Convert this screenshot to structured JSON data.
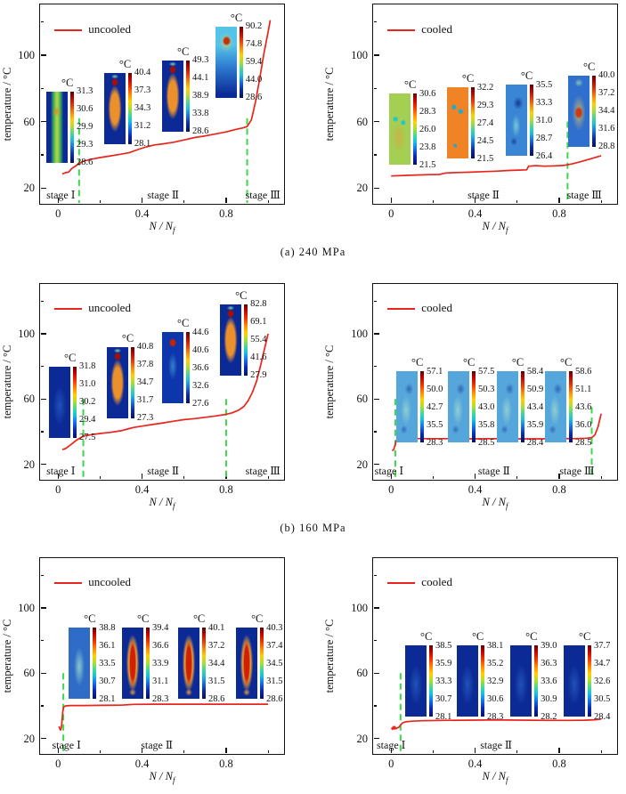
{
  "figure": {
    "captions": [
      "(a) 240 MPa",
      "(b) 160 MPa"
    ],
    "colors": {
      "curve": "#e8251c",
      "stage_line": "#3cd84a",
      "axis": "#111111"
    },
    "axes": {
      "y_title": "temperature / °C",
      "x_title": {
        "var": "N",
        "sep": " / ",
        "sub": "f"
      },
      "xlim": [
        -0.09,
        1.08
      ],
      "ylim": [
        10,
        131
      ],
      "x_major": [
        {
          "v": 0,
          "label": "0"
        },
        {
          "v": 0.4,
          "label": "0.4"
        },
        {
          "v": 0.8,
          "label": "0.8"
        }
      ],
      "x_minor": [
        0.2,
        0.6,
        1.0
      ],
      "y_major": [
        {
          "v": 20,
          "label": "20"
        },
        {
          "v": 60,
          "label": "60"
        },
        {
          "v": 100,
          "label": "100"
        }
      ],
      "y_minor": [
        40,
        80,
        120
      ],
      "grid": false,
      "legend_position": "top-left-inside"
    }
  },
  "chart_data": [
    {
      "type": "line",
      "name": "240 MPa uncooled",
      "row": 0,
      "col": 0,
      "legend": "uncooled",
      "curve": [
        [
          0.02,
          28.5
        ],
        [
          0.035,
          29.3
        ],
        [
          0.05,
          29.6
        ],
        [
          0.065,
          31.8
        ],
        [
          0.08,
          33
        ],
        [
          0.1,
          34.8
        ],
        [
          0.12,
          36.2
        ],
        [
          0.16,
          37.4
        ],
        [
          0.2,
          38.4
        ],
        [
          0.25,
          39.4
        ],
        [
          0.3,
          40.4
        ],
        [
          0.34,
          41.4
        ],
        [
          0.38,
          43.2
        ],
        [
          0.42,
          44.8
        ],
        [
          0.46,
          46
        ],
        [
          0.5,
          46.6
        ],
        [
          0.55,
          47.6
        ],
        [
          0.6,
          49
        ],
        [
          0.65,
          50.4
        ],
        [
          0.7,
          51.4
        ],
        [
          0.75,
          52.6
        ],
        [
          0.8,
          53.8
        ],
        [
          0.85,
          55.4
        ],
        [
          0.88,
          56.2
        ],
        [
          0.9,
          57
        ],
        [
          0.92,
          61
        ],
        [
          0.94,
          72
        ],
        [
          0.96,
          86
        ],
        [
          0.98,
          101
        ],
        [
          1.0,
          114
        ],
        [
          1.01,
          121
        ]
      ],
      "stage_lines": [
        {
          "x": 0.1,
          "y_top": 62
        },
        {
          "x": 0.9,
          "y_top": 62
        }
      ],
      "stage_labels": [
        {
          "text": "stage Ⅰ",
          "x": 0.013
        },
        {
          "text": "stage Ⅱ",
          "x": 0.5
        },
        {
          "text": "stage Ⅲ",
          "x": 0.975
        }
      ],
      "insets": [
        {
          "unit": "°C",
          "ticks": [
            "31.3",
            "30.6",
            "29.9",
            "29.3",
            "28.6"
          ],
          "appearance": "t-bluegreen",
          "pos": {
            "x": 0.029,
            "y": 0.438
          }
        },
        {
          "unit": "°C",
          "ticks": [
            "40.4",
            "37.3",
            "34.3",
            "31.2",
            "28.1"
          ],
          "appearance": "t-hotstripe",
          "pos": {
            "x": 0.264,
            "y": 0.345
          }
        },
        {
          "unit": "°C",
          "ticks": [
            "49.3",
            "44.1",
            "38.9",
            "33.8",
            "28.6"
          ],
          "appearance": "t-hotstripe",
          "pos": {
            "x": 0.5,
            "y": 0.283
          }
        },
        {
          "unit": "°C",
          "ticks": [
            "90.2",
            "74.8",
            "59.4",
            "44.0",
            "28.6"
          ],
          "appearance": "t-cyanhot",
          "pos": {
            "x": 0.717,
            "y": 0.115
          }
        }
      ]
    },
    {
      "type": "line",
      "name": "240 MPa cooled",
      "row": 0,
      "col": 1,
      "legend": "cooled",
      "curve": [
        [
          0.0,
          27.3
        ],
        [
          0.06,
          27.6
        ],
        [
          0.12,
          27.9
        ],
        [
          0.18,
          28.1
        ],
        [
          0.23,
          28.2
        ],
        [
          0.26,
          29.1
        ],
        [
          0.32,
          29.4
        ],
        [
          0.38,
          29.6
        ],
        [
          0.44,
          29.9
        ],
        [
          0.5,
          30.2
        ],
        [
          0.56,
          30.6
        ],
        [
          0.62,
          30.9
        ],
        [
          0.645,
          31
        ],
        [
          0.655,
          33.2
        ],
        [
          0.69,
          33.5
        ],
        [
          0.73,
          33.2
        ],
        [
          0.78,
          33.4
        ],
        [
          0.82,
          33.6
        ],
        [
          0.86,
          34.5
        ],
        [
          0.9,
          35.8
        ],
        [
          0.95,
          37.6
        ],
        [
          1.0,
          39.5
        ]
      ],
      "stage_lines": [
        {
          "x": 0.84,
          "y_top": 60
        }
      ],
      "stage_labels": [
        {
          "text": "stage Ⅱ",
          "x": 0.44
        },
        {
          "text": "stage Ⅲ",
          "x": 0.92
        }
      ],
      "insets": [
        {
          "unit": "°C",
          "ticks": [
            "30.6",
            "28.3",
            "26.0",
            "23.8",
            "21.5"
          ],
          "appearance": "t-greenflat",
          "pos": {
            "x": 0.069,
            "y": 0.447
          }
        },
        {
          "unit": "°C",
          "ticks": [
            "32.2",
            "29.3",
            "27.4",
            "24.5",
            "21.5"
          ],
          "appearance": "t-orangeflat",
          "pos": {
            "x": 0.304,
            "y": 0.416
          }
        },
        {
          "unit": "°C",
          "ticks": [
            "35.5",
            "33.3",
            "31.0",
            "28.7",
            "26.4"
          ],
          "appearance": "t-bluemottled",
          "pos": {
            "x": 0.543,
            "y": 0.403
          }
        },
        {
          "unit": "°C",
          "ticks": [
            "40.0",
            "37.2",
            "34.4",
            "31.6",
            "28.8"
          ],
          "appearance": "t-bluehotmid",
          "pos": {
            "x": 0.797,
            "y": 0.358
          }
        }
      ]
    },
    {
      "type": "line",
      "name": "160 MPa uncooled",
      "row": 1,
      "col": 0,
      "legend": "uncooled",
      "curve": [
        [
          0.02,
          29
        ],
        [
          0.035,
          29.6
        ],
        [
          0.05,
          31
        ],
        [
          0.07,
          33
        ],
        [
          0.09,
          35
        ],
        [
          0.11,
          36.6
        ],
        [
          0.13,
          37.6
        ],
        [
          0.16,
          38.2
        ],
        [
          0.2,
          38.9
        ],
        [
          0.25,
          39.6
        ],
        [
          0.3,
          40.6
        ],
        [
          0.33,
          41.6
        ],
        [
          0.36,
          42.6
        ],
        [
          0.4,
          43.4
        ],
        [
          0.45,
          44.4
        ],
        [
          0.5,
          45.4
        ],
        [
          0.55,
          46.4
        ],
        [
          0.6,
          47.4
        ],
        [
          0.65,
          48
        ],
        [
          0.7,
          48.8
        ],
        [
          0.75,
          49.6
        ],
        [
          0.8,
          50.6
        ],
        [
          0.83,
          51.6
        ],
        [
          0.86,
          53.2
        ],
        [
          0.885,
          55.5
        ],
        [
          0.905,
          59
        ],
        [
          0.925,
          64
        ],
        [
          0.945,
          71
        ],
        [
          0.965,
          81
        ],
        [
          0.985,
          92
        ],
        [
          1.0,
          100
        ]
      ],
      "stage_lines": [
        {
          "x": 0.12,
          "y_top": 60
        },
        {
          "x": 0.8,
          "y_top": 60
        }
      ],
      "stage_labels": [
        {
          "text": "stage Ⅰ",
          "x": 0.013
        },
        {
          "text": "stage Ⅱ",
          "x": 0.5
        },
        {
          "text": "stage Ⅲ",
          "x": 0.975
        }
      ],
      "insets": [
        {
          "unit": "°C",
          "ticks": [
            "31.8",
            "31.0",
            "30.2",
            "29.4",
            "27.5"
          ],
          "appearance": "t-bluedark",
          "pos": {
            "x": 0.04,
            "y": 0.423
          }
        },
        {
          "unit": "°C",
          "ticks": [
            "40.8",
            "37.8",
            "34.7",
            "31.7",
            "27.3"
          ],
          "appearance": "t-hotstripe",
          "pos": {
            "x": 0.275,
            "y": 0.324
          }
        },
        {
          "unit": "°C",
          "ticks": [
            "44.6",
            "40.6",
            "36.6",
            "32.6",
            "27.6"
          ],
          "appearance": "t-spottop",
          "pos": {
            "x": 0.5,
            "y": 0.248
          }
        },
        {
          "unit": "°C",
          "ticks": [
            "82.8",
            "69.1",
            "55.4",
            "41.6",
            "27.9"
          ],
          "appearance": "t-hotstripe",
          "pos": {
            "x": 0.736,
            "y": 0.108
          }
        }
      ]
    },
    {
      "type": "line",
      "name": "160 MPa cooled",
      "row": 1,
      "col": 1,
      "legend": "cooled",
      "curve": [
        [
          0.005,
          28.3
        ],
        [
          0.012,
          29
        ],
        [
          0.018,
          31.5
        ],
        [
          0.025,
          34.5
        ],
        [
          0.035,
          35.6
        ],
        [
          0.05,
          35.8
        ],
        [
          0.1,
          35.8
        ],
        [
          0.2,
          35.7
        ],
        [
          0.3,
          35.7
        ],
        [
          0.4,
          35.6
        ],
        [
          0.5,
          35.7
        ],
        [
          0.6,
          35.6
        ],
        [
          0.7,
          35.6
        ],
        [
          0.8,
          35.7
        ],
        [
          0.88,
          35.8
        ],
        [
          0.93,
          36
        ],
        [
          0.955,
          36.4
        ],
        [
          0.97,
          38
        ],
        [
          0.985,
          43
        ],
        [
          1.0,
          51
        ]
      ],
      "stage_lines": [
        {
          "x": 0.02,
          "y_top": 60
        },
        {
          "x": 0.955,
          "y_top": 55
        }
      ],
      "stage_labels": [
        {
          "text": "stage Ⅰ",
          "x": -0.01
        },
        {
          "text": "stage Ⅱ",
          "x": 0.49
        },
        {
          "text": "stage Ⅲ",
          "x": 0.885
        }
      ],
      "insets": [
        {
          "unit": "°C",
          "ticks": [
            "57.1",
            "50.0",
            "42.7",
            "35.5",
            "28.3"
          ],
          "appearance": "t-cyanmottled",
          "pos": {
            "x": 0.098,
            "y": 0.446
          }
        },
        {
          "unit": "°C",
          "ticks": [
            "57.5",
            "50.3",
            "43.0",
            "35.8",
            "28.5"
          ],
          "appearance": "t-cyanmottled",
          "pos": {
            "x": 0.308,
            "y": 0.446
          }
        },
        {
          "unit": "°C",
          "ticks": [
            "58.4",
            "50.9",
            "43.4",
            "35.9",
            "28.4"
          ],
          "appearance": "t-cyanmottled",
          "pos": {
            "x": 0.507,
            "y": 0.446
          }
        },
        {
          "unit": "°C",
          "ticks": [
            "58.6",
            "51.1",
            "43.6",
            "36.0",
            "28.5"
          ],
          "appearance": "t-cyanmottled",
          "pos": {
            "x": 0.703,
            "y": 0.446
          }
        }
      ]
    },
    {
      "type": "line",
      "name": "uncooled (bottom row)",
      "row": 2,
      "col": 0,
      "legend": "uncooled",
      "curve": [
        [
          0.004,
          27.5
        ],
        [
          0.008,
          26
        ],
        [
          0.012,
          25.2
        ],
        [
          0.016,
          27
        ],
        [
          0.019,
          31
        ],
        [
          0.022,
          36
        ],
        [
          0.026,
          39.2
        ],
        [
          0.035,
          40
        ],
        [
          0.06,
          40.2
        ],
        [
          0.12,
          40.2
        ],
        [
          0.2,
          40.3
        ],
        [
          0.3,
          40.4
        ],
        [
          0.36,
          40.9
        ],
        [
          0.45,
          41
        ],
        [
          0.55,
          41
        ],
        [
          0.65,
          41
        ],
        [
          0.75,
          41
        ],
        [
          0.85,
          41
        ],
        [
          0.95,
          41
        ],
        [
          1.0,
          41
        ]
      ],
      "stage_lines": [
        {
          "x": 0.025,
          "y_top": 60
        }
      ],
      "stage_labels": [
        {
          "text": "stage Ⅰ",
          "x": 0.04
        },
        {
          "text": "stage Ⅱ",
          "x": 0.47
        }
      ],
      "insets": [
        {
          "unit": "°C",
          "ticks": [
            "38.8",
            "36.1",
            "33.5",
            "30.7",
            "28.1"
          ],
          "appearance": "t-palestripe",
          "pos": {
            "x": 0.12,
            "y": 0.356
          }
        },
        {
          "unit": "°C",
          "ticks": [
            "39.4",
            "36.6",
            "33.9",
            "31.1",
            "28.3"
          ],
          "appearance": "t-redbar",
          "pos": {
            "x": 0.337,
            "y": 0.356
          }
        },
        {
          "unit": "°C",
          "ticks": [
            "40.1",
            "37.2",
            "34.4",
            "31.5",
            "28.6"
          ],
          "appearance": "t-redbar",
          "pos": {
            "x": 0.565,
            "y": 0.356
          }
        },
        {
          "unit": "°C",
          "ticks": [
            "40.3",
            "37.4",
            "34.5",
            "31.5",
            "28.6"
          ],
          "appearance": "t-redbar",
          "pos": {
            "x": 0.801,
            "y": 0.356
          }
        }
      ]
    },
    {
      "type": "line",
      "name": "cooled (bottom row)",
      "row": 2,
      "col": 1,
      "legend": "cooled",
      "curve": [
        [
          0.002,
          26.6
        ],
        [
          0.006,
          25.6
        ],
        [
          0.01,
          27.2
        ],
        [
          0.014,
          25.8
        ],
        [
          0.018,
          27.3
        ],
        [
          0.022,
          25.9
        ],
        [
          0.028,
          26.4
        ],
        [
          0.036,
          26.8
        ],
        [
          0.045,
          28.2
        ],
        [
          0.055,
          29.6
        ],
        [
          0.07,
          30.2
        ],
        [
          0.1,
          30.6
        ],
        [
          0.15,
          30.9
        ],
        [
          0.25,
          31.1
        ],
        [
          0.35,
          31.2
        ],
        [
          0.45,
          31.3
        ],
        [
          0.55,
          31.3
        ],
        [
          0.65,
          31.2
        ],
        [
          0.75,
          31.1
        ],
        [
          0.85,
          31.1
        ],
        [
          0.92,
          31.2
        ],
        [
          0.97,
          31.5
        ],
        [
          1.0,
          31.9
        ]
      ],
      "stage_lines": [
        {
          "x": 0.045,
          "y_top": 60
        }
      ],
      "stage_labels": [
        {
          "text": "stage Ⅰ",
          "x": 0.0
        },
        {
          "text": "stage Ⅱ",
          "x": 0.5
        }
      ],
      "insets": [
        {
          "unit": "°C",
          "ticks": [
            "38.5",
            "35.9",
            "33.3",
            "30.7",
            "28.1"
          ],
          "appearance": "t-bluedark",
          "pos": {
            "x": 0.134,
            "y": 0.446
          }
        },
        {
          "unit": "°C",
          "ticks": [
            "38.1",
            "35.2",
            "32.9",
            "30.6",
            "28.3"
          ],
          "appearance": "t-bluedark",
          "pos": {
            "x": 0.344,
            "y": 0.446
          }
        },
        {
          "unit": "°C",
          "ticks": [
            "39.0",
            "36.3",
            "33.6",
            "30.9",
            "28.2"
          ],
          "appearance": "t-bluedark",
          "pos": {
            "x": 0.562,
            "y": 0.446
          }
        },
        {
          "unit": "°C",
          "ticks": [
            "37.7",
            "34.7",
            "32.6",
            "30.5",
            "28.4"
          ],
          "appearance": "t-bluedark",
          "pos": {
            "x": 0.779,
            "y": 0.446
          }
        }
      ]
    }
  ]
}
